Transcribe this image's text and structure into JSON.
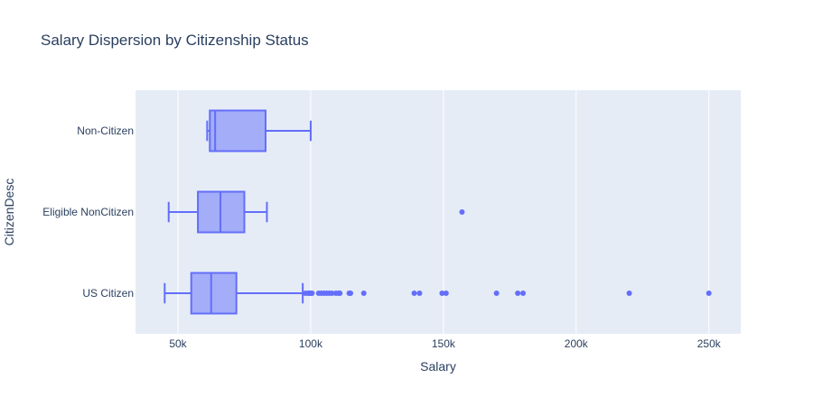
{
  "chart_data": {
    "type": "box",
    "orientation": "horizontal",
    "title": "Salary Dispersion by Citizenship Status",
    "xlabel": "Salary",
    "ylabel": "CitizenDesc",
    "xlim": [
      34000,
      262000
    ],
    "xticks": [
      50000,
      100000,
      150000,
      200000,
      250000
    ],
    "xtick_labels": [
      "50k",
      "100k",
      "150k",
      "200k",
      "250k"
    ],
    "grid": true,
    "colors": {
      "box_line": "#636efa",
      "box_fill": "rgba(99,110,250,0.5)",
      "plot_bg": "#e5ecf6",
      "grid": "#ffffff",
      "text": "#2a3f5f"
    },
    "categories": [
      "US Citizen",
      "Eligible NonCitizen",
      "Non-Citizen"
    ],
    "boxes": [
      {
        "category": "US Citizen",
        "min": 45000,
        "q1": 55000,
        "median": 62500,
        "q3": 72000,
        "max": 97000,
        "outliers": [
          98000,
          99000,
          99500,
          100000,
          100500,
          103000,
          104000,
          105000,
          106000,
          107000,
          108000,
          109500,
          110500,
          111000,
          114500,
          115000,
          120000,
          139000,
          141000,
          149500,
          151000,
          170000,
          178000,
          180000,
          220000,
          250000
        ]
      },
      {
        "category": "Eligible NonCitizen",
        "min": 46500,
        "q1": 57500,
        "median": 66000,
        "q3": 75000,
        "max": 83500,
        "outliers": [
          157000
        ]
      },
      {
        "category": "Non-Citizen",
        "min": 61000,
        "q1": 62000,
        "median": 64000,
        "q3": 83000,
        "max": 100000,
        "outliers": []
      }
    ]
  }
}
